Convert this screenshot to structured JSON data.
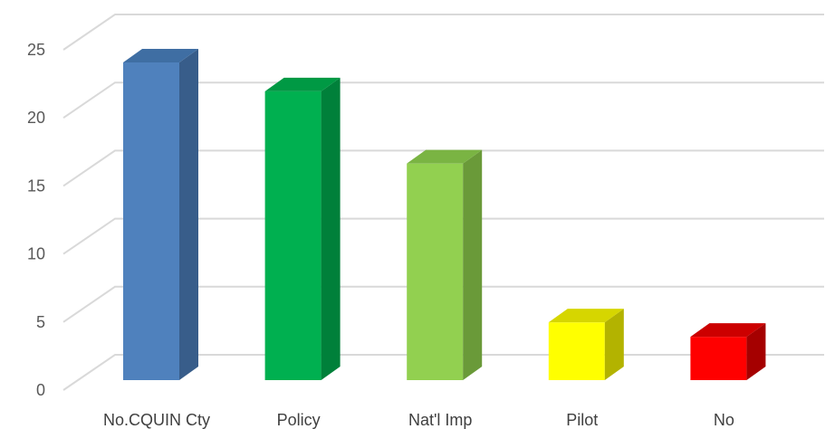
{
  "chart_data": {
    "type": "bar",
    "style": "3d-column",
    "categories": [
      "No.CQUIN Cty",
      "Policy",
      "Nat'l Imp",
      "Pilot",
      "No"
    ],
    "values": [
      22,
      20,
      15,
      4,
      3
    ],
    "colors": [
      {
        "front": "#4f81bd",
        "side": "#385d8a",
        "top": "#3f6ea3"
      },
      {
        "front": "#00b050",
        "side": "#00803a",
        "top": "#009944"
      },
      {
        "front": "#92d050",
        "side": "#6a9a39",
        "top": "#7ab443"
      },
      {
        "front": "#ffff00",
        "side": "#b3b300",
        "top": "#d6d600"
      },
      {
        "front": "#ff0000",
        "side": "#a50000",
        "top": "#cc0000"
      }
    ],
    "ylim": [
      0,
      25
    ],
    "yticks": [
      "0",
      "5",
      "10",
      "15",
      "20",
      "25"
    ],
    "grid": true,
    "title": "",
    "xlabel": "",
    "ylabel": ""
  }
}
